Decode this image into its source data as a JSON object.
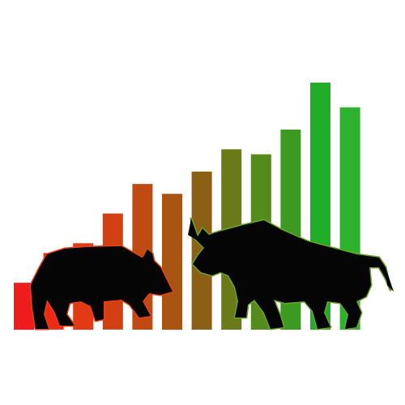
{
  "illustration": {
    "subject": "bull-and-bear-market",
    "bars": [
      {
        "level": 0.19,
        "color": "#ee1c1c"
      },
      {
        "level": 0.31,
        "color": "#ec2a16"
      },
      {
        "level": 0.35,
        "color": "#e23a14"
      },
      {
        "level": 0.47,
        "color": "#d13f12"
      },
      {
        "level": 0.59,
        "color": "#c04a12"
      },
      {
        "level": 0.55,
        "color": "#a95412"
      },
      {
        "level": 0.64,
        "color": "#8b6014"
      },
      {
        "level": 0.73,
        "color": "#6a7a18"
      },
      {
        "level": 0.71,
        "color": "#558a1c"
      },
      {
        "level": 0.81,
        "color": "#3c9a22"
      },
      {
        "level": 1.0,
        "color": "#22ad28"
      },
      {
        "level": 0.9,
        "color": "#2eb12e"
      }
    ],
    "bear": {
      "name": "bear-icon",
      "fill": "#050505",
      "glow": "#e8401a"
    },
    "bull": {
      "name": "bull-icon",
      "fill": "#050505",
      "glow": "#6aa62a"
    }
  }
}
